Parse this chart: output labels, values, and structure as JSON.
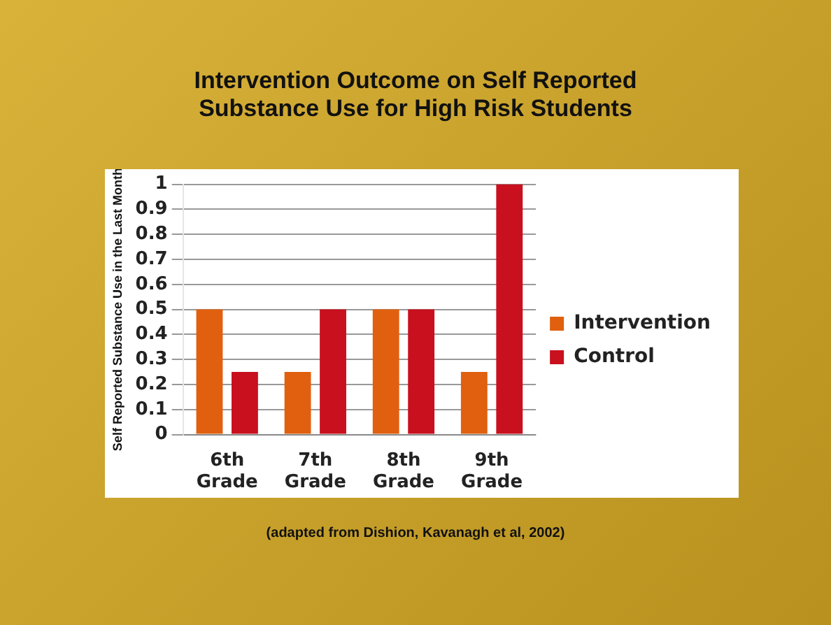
{
  "chart_data": {
    "type": "bar",
    "title": "Intervention Outcome on Self Reported\nSubstance Use for High Risk Students",
    "ylabel": "Self Reported Substance Use in the Last Month",
    "categories": [
      "6th Grade",
      "7th Grade",
      "8th Grade",
      "9th Grade"
    ],
    "series": [
      {
        "name": "Intervention",
        "color": "#e0600f",
        "values": [
          0.5,
          0.25,
          0.5,
          0.25
        ]
      },
      {
        "name": "Control",
        "color": "#c8101e",
        "values": [
          0.25,
          0.5,
          0.5,
          1
        ]
      }
    ],
    "ylim": [
      0,
      1
    ],
    "yticks": [
      0,
      0.1,
      0.2,
      0.3,
      0.4,
      0.5,
      0.6,
      0.7,
      0.8,
      0.9,
      1
    ],
    "grid": "y",
    "legend": "right",
    "annotations": [
      "(adapted from Dishion, Kavanagh et al, 2002)"
    ]
  }
}
